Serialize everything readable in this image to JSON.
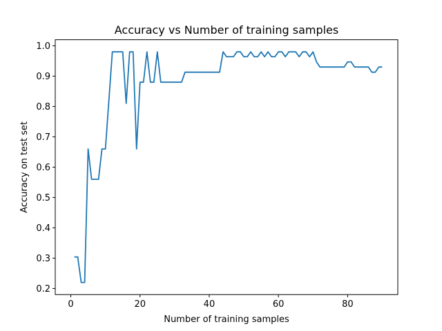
{
  "chart_data": {
    "type": "line",
    "title": "Accuracy vs Number of training samples",
    "xlabel": "Number of training samples",
    "ylabel": "Accuracy on test set",
    "xlim": [
      -4.5,
      94.5
    ],
    "ylim": [
      0.18,
      1.02
    ],
    "xticks": [
      0,
      20,
      40,
      60,
      80
    ],
    "yticks": [
      0.2,
      0.3,
      0.4,
      0.5,
      0.6,
      0.7,
      0.8,
      0.9,
      1.0
    ],
    "xtick_labels": [
      "0",
      "20",
      "40",
      "60",
      "80"
    ],
    "ytick_labels": [
      "0.2",
      "0.3",
      "0.4",
      "0.5",
      "0.6",
      "0.7",
      "0.8",
      "0.9",
      "1.0"
    ],
    "grid": false,
    "line_color": "#1f77b4",
    "series": [
      {
        "x": [
          1,
          2,
          3,
          4,
          5,
          6,
          7,
          8,
          9,
          10,
          11,
          12,
          13,
          14,
          15,
          16,
          17,
          18,
          19,
          20,
          21,
          22,
          23,
          24,
          25,
          26,
          27,
          28,
          29,
          30,
          31,
          32,
          33,
          34,
          35,
          36,
          37,
          38,
          39,
          40,
          41,
          42,
          43,
          44,
          45,
          46,
          47,
          48,
          49,
          50,
          51,
          52,
          53,
          54,
          55,
          56,
          57,
          58,
          59,
          60,
          61,
          62,
          63,
          64,
          65,
          66,
          67,
          68,
          69,
          70,
          71,
          72,
          73,
          74,
          75,
          76,
          77,
          78,
          79,
          80,
          81,
          82,
          83,
          84,
          85,
          86,
          87,
          88,
          89,
          90
        ],
        "values": [
          0.304,
          0.304,
          0.22,
          0.22,
          0.66,
          0.56,
          0.56,
          0.56,
          0.66,
          0.66,
          0.82,
          0.98,
          0.98,
          0.98,
          0.98,
          0.81,
          0.98,
          0.98,
          0.66,
          0.88,
          0.88,
          0.98,
          0.88,
          0.88,
          0.98,
          0.88,
          0.88,
          0.88,
          0.88,
          0.88,
          0.88,
          0.88,
          0.913,
          0.913,
          0.913,
          0.913,
          0.913,
          0.913,
          0.913,
          0.913,
          0.913,
          0.913,
          0.913,
          0.98,
          0.964,
          0.964,
          0.964,
          0.98,
          0.98,
          0.964,
          0.964,
          0.98,
          0.964,
          0.964,
          0.98,
          0.964,
          0.98,
          0.964,
          0.964,
          0.98,
          0.98,
          0.964,
          0.98,
          0.98,
          0.98,
          0.964,
          0.98,
          0.98,
          0.964,
          0.98,
          0.947,
          0.93,
          0.93,
          0.93,
          0.93,
          0.93,
          0.93,
          0.93,
          0.93,
          0.947,
          0.947,
          0.93,
          0.93,
          0.93,
          0.93,
          0.93,
          0.913,
          0.913,
          0.93,
          0.93
        ]
      }
    ]
  }
}
